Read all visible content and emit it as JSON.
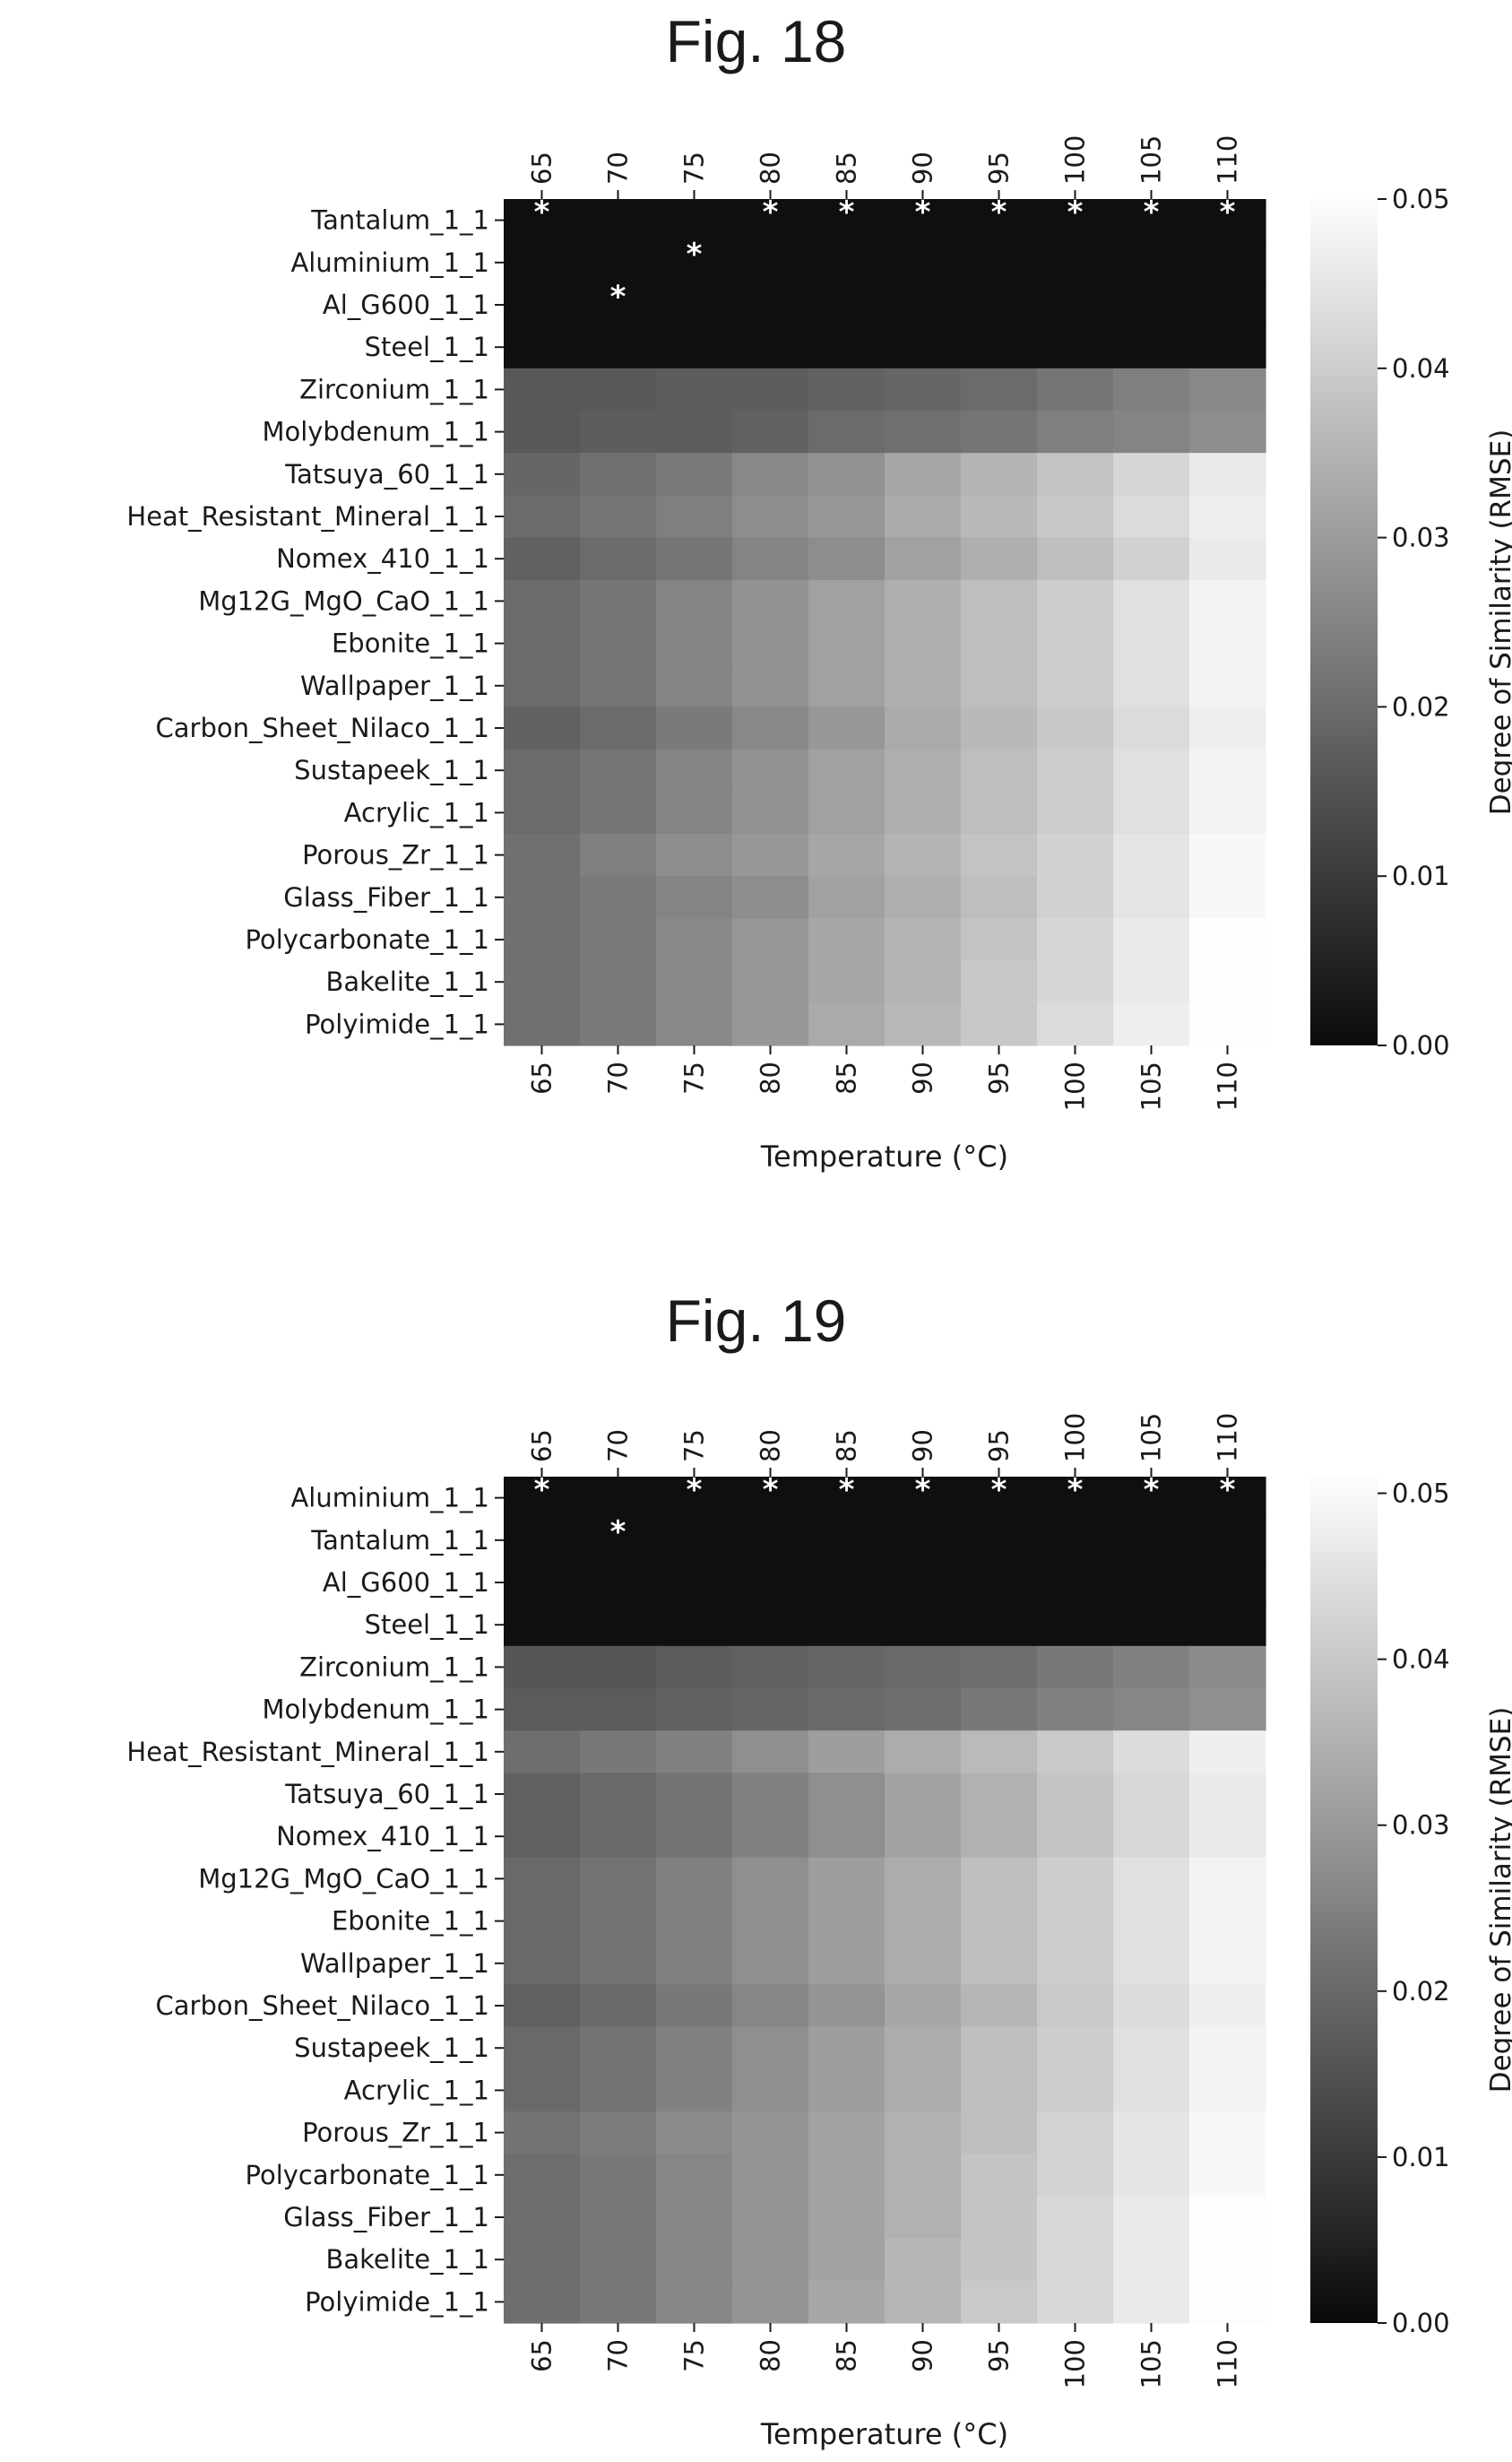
{
  "chart_data": [
    {
      "type": "heatmap",
      "title": "Fig. 18",
      "xlabel": "Temperature (°C)",
      "colorbar_label": "Degree of Similarity (RMSE)",
      "colorbar_ticks": [
        "0.00",
        "0.01",
        "0.02",
        "0.03",
        "0.04",
        "0.05"
      ],
      "colorbar_range": [
        0,
        0.05
      ],
      "colormap": "gray (dark = low, light = high)",
      "x": [
        "65",
        "70",
        "75",
        "80",
        "85",
        "90",
        "95",
        "100",
        "105",
        "110"
      ],
      "y": [
        "Tantalum_1_1",
        "Aluminium_1_1",
        "Al_G600_1_1",
        "Steel_1_1",
        "Zirconium_1_1",
        "Molybdenum_1_1",
        "Tatsuya_60_1_1",
        "Heat_Resistant_Mineral_1_1",
        "Nomex_410_1_1",
        "Mg12G_MgO_CaO_1_1",
        "Ebonite_1_1",
        "Wallpaper_1_1",
        "Carbon_Sheet_Nilaco_1_1",
        "Sustapeek_1_1",
        "Acrylic_1_1",
        "Porous_Zr_1_1",
        "Glass_Fiber_1_1",
        "Polycarbonate_1_1",
        "Bakelite_1_1",
        "Polyimide_1_1"
      ],
      "values": [
        [
          0.001,
          0.001,
          0.001,
          0.001,
          0.001,
          0.001,
          0.001,
          0.001,
          0.001,
          0.001
        ],
        [
          0.001,
          0.001,
          0.001,
          0.001,
          0.001,
          0.001,
          0.001,
          0.001,
          0.001,
          0.001
        ],
        [
          0.001,
          0.001,
          0.001,
          0.001,
          0.001,
          0.001,
          0.001,
          0.001,
          0.001,
          0.001
        ],
        [
          0.001,
          0.001,
          0.001,
          0.001,
          0.001,
          0.001,
          0.001,
          0.001,
          0.001,
          0.001
        ],
        [
          0.016,
          0.016,
          0.017,
          0.017,
          0.018,
          0.019,
          0.02,
          0.022,
          0.024,
          0.026
        ],
        [
          0.016,
          0.017,
          0.017,
          0.018,
          0.02,
          0.021,
          0.022,
          0.024,
          0.025,
          0.027
        ],
        [
          0.019,
          0.021,
          0.023,
          0.026,
          0.028,
          0.032,
          0.035,
          0.038,
          0.042,
          0.046
        ],
        [
          0.02,
          0.022,
          0.024,
          0.027,
          0.029,
          0.033,
          0.036,
          0.039,
          0.043,
          0.047
        ],
        [
          0.018,
          0.02,
          0.022,
          0.025,
          0.027,
          0.031,
          0.034,
          0.037,
          0.041,
          0.046
        ],
        [
          0.02,
          0.022,
          0.025,
          0.028,
          0.031,
          0.034,
          0.037,
          0.04,
          0.044,
          0.048
        ],
        [
          0.02,
          0.022,
          0.025,
          0.028,
          0.031,
          0.034,
          0.037,
          0.04,
          0.044,
          0.048
        ],
        [
          0.02,
          0.022,
          0.025,
          0.028,
          0.031,
          0.034,
          0.037,
          0.04,
          0.044,
          0.048
        ],
        [
          0.018,
          0.02,
          0.023,
          0.026,
          0.029,
          0.033,
          0.036,
          0.039,
          0.043,
          0.047
        ],
        [
          0.02,
          0.022,
          0.025,
          0.028,
          0.031,
          0.034,
          0.037,
          0.04,
          0.044,
          0.048
        ],
        [
          0.02,
          0.022,
          0.025,
          0.028,
          0.031,
          0.034,
          0.037,
          0.04,
          0.044,
          0.048
        ],
        [
          0.021,
          0.024,
          0.027,
          0.029,
          0.032,
          0.035,
          0.038,
          0.041,
          0.045,
          0.049
        ],
        [
          0.021,
          0.023,
          0.025,
          0.027,
          0.031,
          0.034,
          0.037,
          0.041,
          0.045,
          0.049
        ],
        [
          0.021,
          0.023,
          0.026,
          0.029,
          0.032,
          0.035,
          0.038,
          0.042,
          0.046,
          0.05
        ],
        [
          0.021,
          0.023,
          0.026,
          0.029,
          0.032,
          0.035,
          0.039,
          0.042,
          0.046,
          0.05
        ],
        [
          0.021,
          0.023,
          0.026,
          0.029,
          0.033,
          0.036,
          0.039,
          0.043,
          0.047,
          0.05
        ]
      ],
      "markers": [
        [
          0,
          0
        ],
        [
          0,
          3
        ],
        [
          0,
          4
        ],
        [
          0,
          5
        ],
        [
          0,
          6
        ],
        [
          0,
          7
        ],
        [
          0,
          8
        ],
        [
          0,
          9
        ],
        [
          1,
          2
        ],
        [
          2,
          1
        ]
      ],
      "marker_symbol": "*"
    },
    {
      "type": "heatmap",
      "title": "Fig. 19",
      "xlabel": "Temperature (°C)",
      "colorbar_label": "Degree of Similarity (RMSE)",
      "colorbar_ticks": [
        "0.00",
        "0.01",
        "0.02",
        "0.03",
        "0.04",
        "0.05"
      ],
      "colorbar_range": [
        0,
        0.051
      ],
      "colormap": "gray (dark = low, light = high)",
      "x": [
        "65",
        "70",
        "75",
        "80",
        "85",
        "90",
        "95",
        "100",
        "105",
        "110"
      ],
      "y": [
        "Aluminium_1_1",
        "Tantalum_1_1",
        "Al_G600_1_1",
        "Steel_1_1",
        "Zirconium_1_1",
        "Molybdenum_1_1",
        "Heat_Resistant_Mineral_1_1",
        "Tatsuya_60_1_1",
        "Nomex_410_1_1",
        "Mg12G_MgO_CaO_1_1",
        "Ebonite_1_1",
        "Wallpaper_1_1",
        "Carbon_Sheet_Nilaco_1_1",
        "Sustapeek_1_1",
        "Acrylic_1_1",
        "Porous_Zr_1_1",
        "Polycarbonate_1_1",
        "Glass_Fiber_1_1",
        "Bakelite_1_1",
        "Polyimide_1_1"
      ],
      "values": [
        [
          0.001,
          0.001,
          0.001,
          0.001,
          0.001,
          0.001,
          0.001,
          0.001,
          0.001,
          0.001
        ],
        [
          0.001,
          0.001,
          0.001,
          0.001,
          0.001,
          0.001,
          0.001,
          0.001,
          0.001,
          0.001
        ],
        [
          0.001,
          0.001,
          0.001,
          0.001,
          0.001,
          0.001,
          0.001,
          0.001,
          0.001,
          0.001
        ],
        [
          0.001,
          0.001,
          0.001,
          0.001,
          0.001,
          0.001,
          0.001,
          0.001,
          0.001,
          0.001
        ],
        [
          0.016,
          0.016,
          0.017,
          0.018,
          0.019,
          0.02,
          0.021,
          0.023,
          0.025,
          0.027
        ],
        [
          0.017,
          0.017,
          0.018,
          0.019,
          0.02,
          0.021,
          0.023,
          0.025,
          0.026,
          0.028
        ],
        [
          0.021,
          0.023,
          0.025,
          0.028,
          0.031,
          0.034,
          0.037,
          0.04,
          0.044,
          0.048
        ],
        [
          0.018,
          0.02,
          0.022,
          0.025,
          0.028,
          0.032,
          0.035,
          0.039,
          0.043,
          0.047
        ],
        [
          0.018,
          0.02,
          0.022,
          0.025,
          0.028,
          0.032,
          0.035,
          0.039,
          0.043,
          0.047
        ],
        [
          0.02,
          0.022,
          0.025,
          0.028,
          0.031,
          0.034,
          0.038,
          0.041,
          0.045,
          0.049
        ],
        [
          0.02,
          0.022,
          0.025,
          0.028,
          0.031,
          0.034,
          0.038,
          0.041,
          0.045,
          0.049
        ],
        [
          0.02,
          0.022,
          0.025,
          0.028,
          0.031,
          0.034,
          0.038,
          0.041,
          0.045,
          0.049
        ],
        [
          0.018,
          0.02,
          0.023,
          0.026,
          0.029,
          0.033,
          0.036,
          0.04,
          0.044,
          0.048
        ],
        [
          0.02,
          0.022,
          0.025,
          0.028,
          0.031,
          0.034,
          0.038,
          0.041,
          0.045,
          0.049
        ],
        [
          0.02,
          0.022,
          0.025,
          0.028,
          0.031,
          0.034,
          0.038,
          0.041,
          0.045,
          0.049
        ],
        [
          0.022,
          0.024,
          0.027,
          0.029,
          0.032,
          0.035,
          0.038,
          0.042,
          0.046,
          0.05
        ],
        [
          0.021,
          0.023,
          0.026,
          0.029,
          0.032,
          0.035,
          0.039,
          0.042,
          0.046,
          0.05
        ],
        [
          0.021,
          0.023,
          0.026,
          0.029,
          0.032,
          0.035,
          0.039,
          0.043,
          0.047,
          0.051
        ],
        [
          0.021,
          0.023,
          0.026,
          0.029,
          0.032,
          0.036,
          0.039,
          0.043,
          0.047,
          0.051
        ],
        [
          0.021,
          0.023,
          0.026,
          0.029,
          0.033,
          0.036,
          0.04,
          0.043,
          0.047,
          0.051
        ]
      ],
      "markers": [
        [
          0,
          0
        ],
        [
          0,
          2
        ],
        [
          0,
          3
        ],
        [
          0,
          4
        ],
        [
          0,
          5
        ],
        [
          0,
          6
        ],
        [
          0,
          7
        ],
        [
          0,
          8
        ],
        [
          0,
          9
        ],
        [
          1,
          1
        ]
      ],
      "marker_symbol": "*"
    }
  ]
}
